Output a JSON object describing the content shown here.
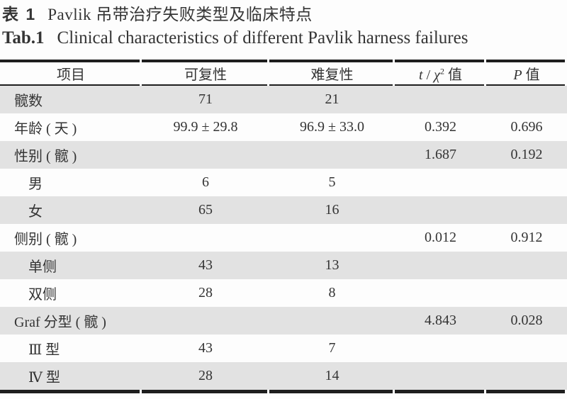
{
  "titles": {
    "cn": {
      "label": "表 1",
      "text": "Pavlik 吊带治疗失败类型及临床特点"
    },
    "en": {
      "label": "Tab.1",
      "text": "Clinical characteristics of different Pavlik harness failures"
    }
  },
  "colors": {
    "row_shade": "#e2e2e2",
    "rule": "#1e1e1e",
    "text": "#343434"
  },
  "table": {
    "header": {
      "item": "项目",
      "reducible": "可复性",
      "irreducible": "难复性",
      "stat": {
        "t": "t",
        "slash": " / ",
        "chi": "χ",
        "sup": "2",
        "suffix": " 值"
      },
      "p": {
        "p": "P",
        "suffix": " 值"
      }
    },
    "rows": [
      {
        "label": "髋数",
        "reducible": "71",
        "irreducible": "21",
        "stat": "",
        "p": ""
      },
      {
        "label": "年龄 ( 天 )",
        "reducible": "99.9 ± 29.8",
        "irreducible": "96.9 ± 33.0",
        "stat": "0.392",
        "p": "0.696"
      },
      {
        "label": "性别 ( 髋 )",
        "reducible": "",
        "irreducible": "",
        "stat": "1.687",
        "p": "0.192"
      },
      {
        "label": "男",
        "reducible": "6",
        "irreducible": "5",
        "stat": "",
        "p": ""
      },
      {
        "label": "女",
        "reducible": "65",
        "irreducible": "16",
        "stat": "",
        "p": ""
      },
      {
        "label": "侧别 ( 髋 )",
        "reducible": "",
        "irreducible": "",
        "stat": "0.012",
        "p": "0.912"
      },
      {
        "label": "单侧",
        "reducible": "43",
        "irreducible": "13",
        "stat": "",
        "p": ""
      },
      {
        "label": "双侧",
        "reducible": "28",
        "irreducible": "8",
        "stat": "",
        "p": ""
      },
      {
        "label": "Graf 分型 ( 髋 )",
        "reducible": "",
        "irreducible": "",
        "stat": "4.843",
        "p": "0.028"
      },
      {
        "label": "Ⅲ 型",
        "reducible": "43",
        "irreducible": "7",
        "stat": "",
        "p": ""
      },
      {
        "label": "Ⅳ 型",
        "reducible": "28",
        "irreducible": "14",
        "stat": "",
        "p": ""
      }
    ]
  }
}
